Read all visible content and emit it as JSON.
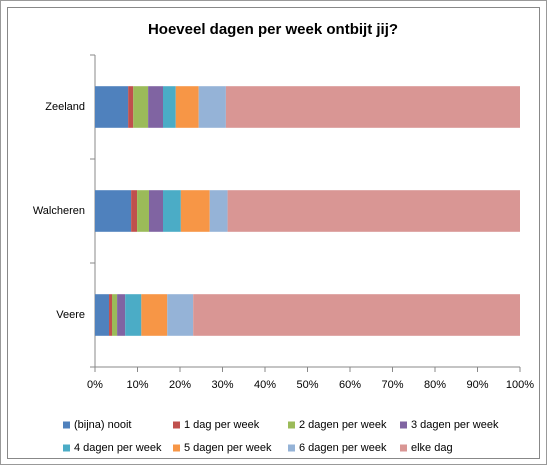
{
  "chart_data": {
    "type": "stacked-barh",
    "title": "Hoeveel dagen per week ontbijt jij?",
    "categories": [
      "Zeeland",
      "Walcheren",
      "Veere"
    ],
    "series": [
      {
        "name": "(bijna) nooit",
        "color": "#4f81bd",
        "values": [
          7.8,
          8.5,
          3.3
        ]
      },
      {
        "name": "1 dag per week",
        "color": "#c0504d",
        "values": [
          1.2,
          1.4,
          0.7
        ]
      },
      {
        "name": "2 dagen per week",
        "color": "#9bbb59",
        "values": [
          3.5,
          2.8,
          1.2
        ]
      },
      {
        "name": "3 dagen per week",
        "color": "#8064a2",
        "values": [
          3.5,
          3.3,
          1.9
        ]
      },
      {
        "name": "4 dagen per week",
        "color": "#4bacc6",
        "values": [
          3.0,
          4.2,
          3.8
        ]
      },
      {
        "name": "5 dagen per week",
        "color": "#f79646",
        "values": [
          5.4,
          6.8,
          6.1
        ]
      },
      {
        "name": "6 dagen per week",
        "color": "#95b3d7",
        "values": [
          6.4,
          4.2,
          6.1
        ]
      },
      {
        "name": "elke dag",
        "color": "#d99694",
        "values": [
          69.2,
          68.8,
          76.9
        ]
      }
    ],
    "xlim": [
      0,
      100
    ],
    "xticks": [
      {
        "value": 0,
        "label": "0%"
      },
      {
        "value": 10,
        "label": "10%"
      },
      {
        "value": 20,
        "label": "20%"
      },
      {
        "value": 30,
        "label": "30%"
      },
      {
        "value": 40,
        "label": "40%"
      },
      {
        "value": 50,
        "label": "50%"
      },
      {
        "value": 60,
        "label": "60%"
      },
      {
        "value": 70,
        "label": "70%"
      },
      {
        "value": 80,
        "label": "80%"
      },
      {
        "value": 90,
        "label": "90%"
      },
      {
        "value": 100,
        "label": "100%"
      }
    ],
    "grid": false,
    "legend": "bottom"
  }
}
